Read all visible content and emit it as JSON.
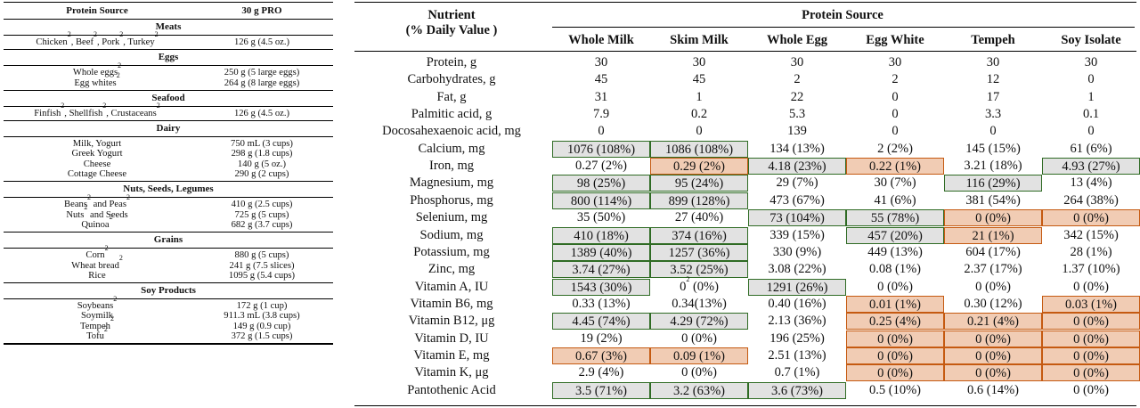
{
  "left_table": {
    "headers": [
      "Protein Source",
      "30 g PRO"
    ],
    "groups": [
      {
        "category": "Meats",
        "rows": [
          {
            "items": [
              {
                "t": "Chicken",
                "s": "2"
              },
              {
                "t": ", Beef",
                "s": "2"
              },
              {
                "t": ", Pork",
                "s": "2"
              },
              {
                "t": ", Turkey",
                "s": "2"
              }
            ],
            "amount": "126 g (4.5 oz.)"
          }
        ]
      },
      {
        "category": "Eggs",
        "rows": [
          {
            "items": [
              {
                "t": "Whole eggs",
                "s": "2"
              }
            ],
            "amount": "250 g (5 large eggs)"
          },
          {
            "items": [
              {
                "t": "Egg whites",
                "s": "2"
              }
            ],
            "amount": "264 g (8 large eggs)"
          }
        ]
      },
      {
        "category": "Seafood",
        "rows": [
          {
            "items": [
              {
                "t": "Finfish",
                "s": "2"
              },
              {
                "t": ", Shellfish",
                "s": "2"
              },
              {
                "t": ", Crustaceans",
                "s": "2"
              }
            ],
            "amount": "126 g (4.5 oz.)"
          }
        ]
      },
      {
        "category": "Dairy",
        "rows": [
          {
            "items": [
              {
                "t": "Milk, Yogurt",
                "s": ""
              }
            ],
            "amount": "750 mL (3 cups)"
          },
          {
            "items": [
              {
                "t": "Greek Yogurt",
                "s": ""
              }
            ],
            "amount": "298 g (1.8 cups)"
          },
          {
            "items": [
              {
                "t": "Cheese",
                "s": ""
              }
            ],
            "amount": "140 g (5 oz.)"
          },
          {
            "items": [
              {
                "t": "Cottage Cheese",
                "s": ""
              }
            ],
            "amount": "290 g (2 cups)"
          }
        ]
      },
      {
        "category": "Nuts, Seeds, Legumes",
        "rows": [
          {
            "items": [
              {
                "t": "Beans",
                "s": "2"
              },
              {
                "t": " and Peas",
                "s": "2"
              }
            ],
            "amount": "410 g (2.5 cups)"
          },
          {
            "items": [
              {
                "t": "Nuts",
                "s": "2"
              },
              {
                "t": " and Seeds",
                "s": ""
              }
            ],
            "amount": "725 g (5 cups)"
          },
          {
            "items": [
              {
                "t": "Quinoa",
                "s": "2"
              }
            ],
            "amount": "682 g (3.7 cups)"
          }
        ]
      },
      {
        "category": "Grains",
        "rows": [
          {
            "items": [
              {
                "t": "Corn",
                "s": "2"
              }
            ],
            "amount": "880 g (5 cups)"
          },
          {
            "items": [
              {
                "t": "Wheat bread",
                "s": "2"
              }
            ],
            "amount": "241 g (7.5 slices)"
          },
          {
            "items": [
              {
                "t": "Rice",
                "s": ""
              }
            ],
            "amount": "1095 g (5.4 cups)"
          }
        ]
      },
      {
        "category": "Soy Products",
        "rows": [
          {
            "items": [
              {
                "t": "Soybeans",
                "s": "2"
              }
            ],
            "amount": "172 g (1 cup)"
          },
          {
            "items": [
              {
                "t": "Soymilk",
                "s": ""
              }
            ],
            "amount": "911.3 mL (3.8 cups)"
          },
          {
            "items": [
              {
                "t": "Tempeh",
                "s": "2"
              }
            ],
            "amount": "149 g (0.9 cup)"
          },
          {
            "items": [
              {
                "t": "Tofu",
                "s": "2"
              }
            ],
            "amount": "372 g (1.5 cups)"
          }
        ]
      }
    ]
  },
  "right_table": {
    "nutrient_header": [
      "Nutrient",
      "(% Daily Value )"
    ],
    "source_header": "Protein Source",
    "columns": [
      "Whole Milk",
      "Skim Milk",
      "Whole Egg",
      "Egg White",
      "Tempeh",
      "Soy Isolate"
    ],
    "highlight_colors": {
      "g": "#e2e2e2",
      "o": "#f1ccb4",
      "g_border": "#2f6b24",
      "o_border": "#c55a11"
    },
    "rows": [
      {
        "name": "Protein, g",
        "cells": [
          {
            "v": "30"
          },
          {
            "v": "30"
          },
          {
            "v": "30"
          },
          {
            "v": "30"
          },
          {
            "v": "30"
          },
          {
            "v": "30"
          }
        ]
      },
      {
        "name": "Carbohydrates, g",
        "cells": [
          {
            "v": "45"
          },
          {
            "v": "45"
          },
          {
            "v": "2"
          },
          {
            "v": "2"
          },
          {
            "v": "12"
          },
          {
            "v": "0"
          }
        ]
      },
      {
        "name": "Fat, g",
        "cells": [
          {
            "v": "31"
          },
          {
            "v": "1"
          },
          {
            "v": "22"
          },
          {
            "v": "0"
          },
          {
            "v": "17"
          },
          {
            "v": "1"
          }
        ]
      },
      {
        "name": "Palmitic acid, g",
        "cells": [
          {
            "v": "7.9"
          },
          {
            "v": "0.2"
          },
          {
            "v": "5.3"
          },
          {
            "v": "0"
          },
          {
            "v": "3.3"
          },
          {
            "v": "0.1"
          }
        ]
      },
      {
        "name": "Docosahexaenoic acid, mg",
        "cells": [
          {
            "v": "0"
          },
          {
            "v": "0"
          },
          {
            "v": "139"
          },
          {
            "v": "0"
          },
          {
            "v": "0"
          },
          {
            "v": "0"
          }
        ]
      },
      {
        "name": "Calcium, mg",
        "cells": [
          {
            "v": "1076 (108%)",
            "h": "g"
          },
          {
            "v": "1086 (108%)",
            "h": "g"
          },
          {
            "v": "134 (13%)"
          },
          {
            "v": "2 (2%)"
          },
          {
            "v": "145 (15%)"
          },
          {
            "v": "61 (6%)"
          }
        ]
      },
      {
        "name": "Iron, mg",
        "cells": [
          {
            "v": "0.27 (2%)"
          },
          {
            "v": "0.29 (2%)",
            "h": "o"
          },
          {
            "v": "4.18 (23%)",
            "h": "g"
          },
          {
            "v": "0.22 (1%)",
            "h": "o"
          },
          {
            "v": "3.21 (18%)"
          },
          {
            "v": "4.93 (27%)",
            "h": "g"
          }
        ]
      },
      {
        "name": "Magnesium, mg",
        "cells": [
          {
            "v": "98 (25%)",
            "h": "g"
          },
          {
            "v": "95 (24%)",
            "h": "g"
          },
          {
            "v": "29 (7%)"
          },
          {
            "v": "30 (7%)"
          },
          {
            "v": "116 (29%)",
            "h": "g"
          },
          {
            "v": "13 (4%)"
          }
        ]
      },
      {
        "name": "Phosphorus, mg",
        "cells": [
          {
            "v": "800 (114%)",
            "h": "g"
          },
          {
            "v": "899 (128%)",
            "h": "g"
          },
          {
            "v": "473 (67%)"
          },
          {
            "v": "41 (6%)"
          },
          {
            "v": "381 (54%)"
          },
          {
            "v": "264 (38%)"
          }
        ]
      },
      {
        "name": "Selenium, mg",
        "cells": [
          {
            "v": "35 (50%)"
          },
          {
            "v": "27 (40%)"
          },
          {
            "v": "73 (104%)",
            "h": "g"
          },
          {
            "v": "55 (78%)",
            "h": "g"
          },
          {
            "v": "0 (0%)",
            "h": "o"
          },
          {
            "v": "0 (0%)",
            "h": "o"
          }
        ]
      },
      {
        "name": "Sodium, mg",
        "cells": [
          {
            "v": "410 (18%)",
            "h": "g"
          },
          {
            "v": "374 (16%)",
            "h": "g"
          },
          {
            "v": "339 (15%)"
          },
          {
            "v": "457 (20%)",
            "h": "g"
          },
          {
            "v": "21 (1%)",
            "h": "o"
          },
          {
            "v": "342 (15%)"
          }
        ]
      },
      {
        "name": "Potassium, mg",
        "cells": [
          {
            "v": "1389 (40%)",
            "h": "g"
          },
          {
            "v": "1257 (36%)",
            "h": "g"
          },
          {
            "v": "330 (9%)"
          },
          {
            "v": "449 (13%)"
          },
          {
            "v": "604 (17%)"
          },
          {
            "v": "28 (1%)"
          }
        ]
      },
      {
        "name": "Zinc, mg",
        "cells": [
          {
            "v": "3.74 (27%)",
            "h": "g"
          },
          {
            "v": "3.52 (25%)",
            "h": "g"
          },
          {
            "v": "3.08 (22%)"
          },
          {
            "v": "0.08 (1%)"
          },
          {
            "v": "2.37 (17%)"
          },
          {
            "v": "1.37 (10%)"
          }
        ]
      },
      {
        "name": "Vitamin A, IU",
        "cells": [
          {
            "v": "1543 (30%)",
            "h": "g"
          },
          {
            "v": "0",
            "s": "2",
            "v2": " (0%)"
          },
          {
            "v": "1291 (26%)",
            "h": "g"
          },
          {
            "v": "0 (0%)"
          },
          {
            "v": "0 (0%)"
          },
          {
            "v": "0 (0%)"
          }
        ]
      },
      {
        "name": "Vitamin B6, mg",
        "cells": [
          {
            "v": "0.33 (13%)"
          },
          {
            "v": "0.34(13%)"
          },
          {
            "v": "0.40 (16%)"
          },
          {
            "v": "0.01 (1%)",
            "h": "o"
          },
          {
            "v": "0.30 (12%)"
          },
          {
            "v": "0.03 (1%)",
            "h": "o"
          }
        ]
      },
      {
        "name": "Vitamin B12, μg",
        "cells": [
          {
            "v": "4.45 (74%)",
            "h": "g"
          },
          {
            "v": "4.29 (72%)",
            "h": "g"
          },
          {
            "v": "2.13 (36%)"
          },
          {
            "v": "0.25 (4%)",
            "h": "o"
          },
          {
            "v": "0.21 (4%)",
            "h": "o"
          },
          {
            "v": "0 (0%)",
            "h": "o"
          }
        ]
      },
      {
        "name": "Vitamin D, IU",
        "cells": [
          {
            "v": "19 (2%)"
          },
          {
            "v": "0 (0%)"
          },
          {
            "v": "196 (25%)"
          },
          {
            "v": "0 (0%)",
            "h": "o"
          },
          {
            "v": "0 (0%)",
            "h": "o"
          },
          {
            "v": "0 (0%)",
            "h": "o"
          }
        ]
      },
      {
        "name": "Vitamin E, mg",
        "cells": [
          {
            "v": "0.67 (3%)",
            "h": "o"
          },
          {
            "v": "0.09 (1%)",
            "h": "o"
          },
          {
            "v": "2.51 (13%)"
          },
          {
            "v": "0 (0%)",
            "h": "o"
          },
          {
            "v": "0 (0%)",
            "h": "o"
          },
          {
            "v": "0 (0%)",
            "h": "o"
          }
        ]
      },
      {
        "name": "Vitamin K, μg",
        "cells": [
          {
            "v": "2.9 (4%)"
          },
          {
            "v": "0 (0%)"
          },
          {
            "v": "0.7 (1%)"
          },
          {
            "v": "0 (0%)",
            "h": "o"
          },
          {
            "v": "0 (0%)",
            "h": "o"
          },
          {
            "v": "0 (0%)",
            "h": "o"
          }
        ]
      },
      {
        "name": "Pantothenic Acid",
        "cells": [
          {
            "v": "3.5 (71%)",
            "h": "g"
          },
          {
            "v": "3.2 (63%)",
            "h": "g"
          },
          {
            "v": "3.6 (73%)",
            "h": "g"
          },
          {
            "v": "0.5 (10%)"
          },
          {
            "v": "0.6 (14%)"
          },
          {
            "v": "0 (0%)"
          }
        ]
      }
    ]
  }
}
